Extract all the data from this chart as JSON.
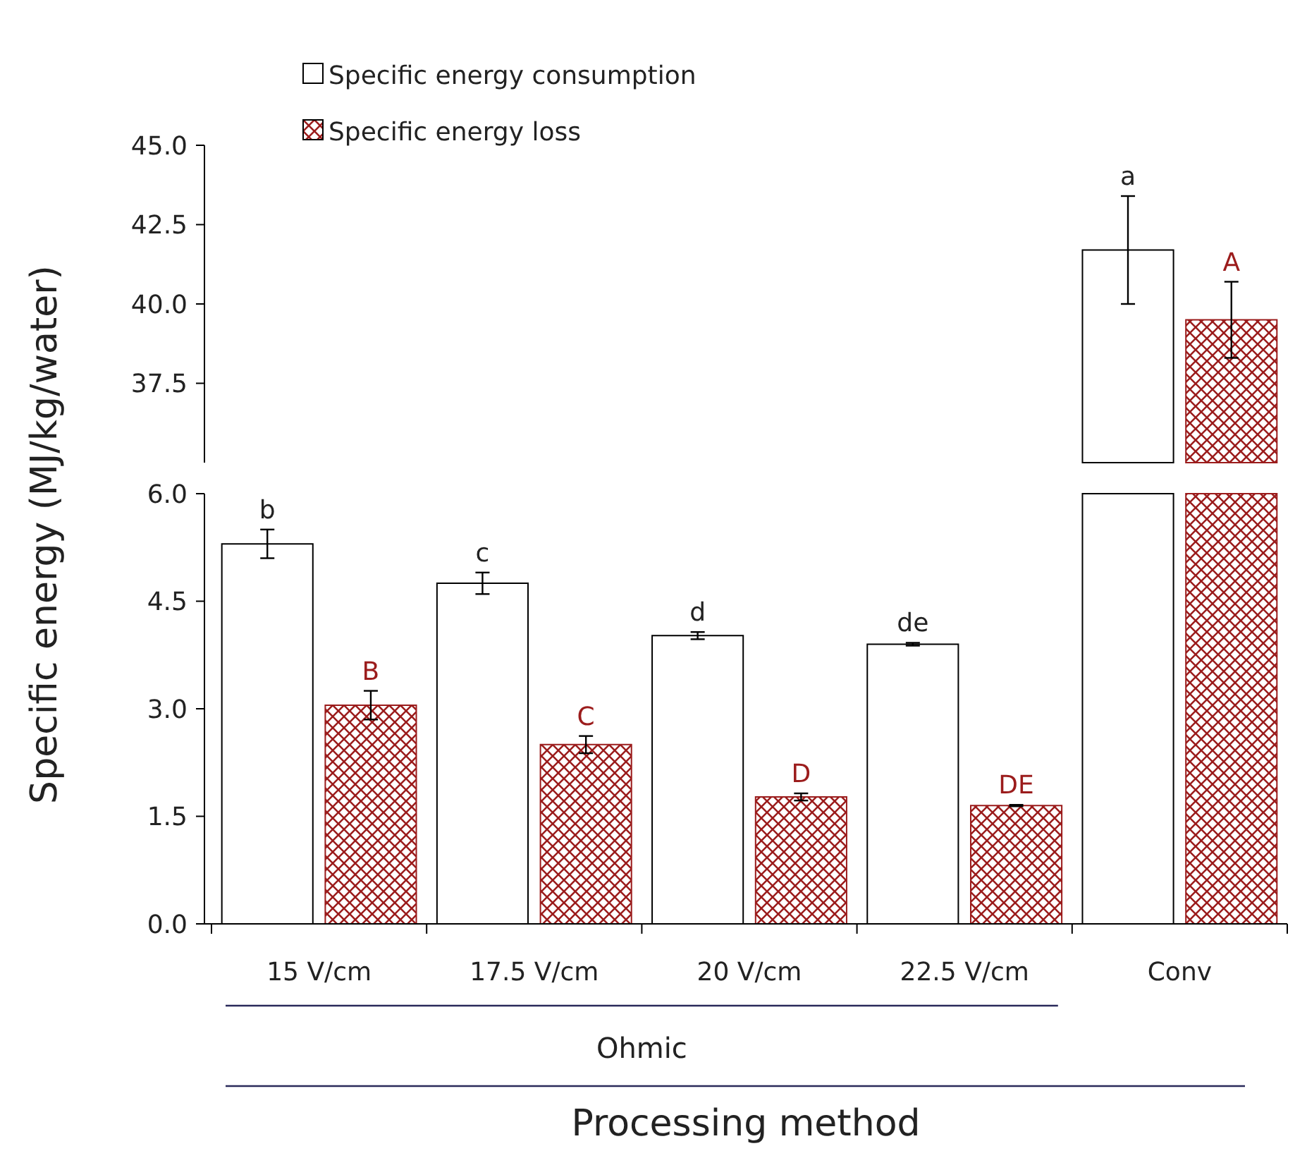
{
  "chart_data": [
    {
      "type": "bar",
      "categories": [
        "15 V/cm",
        "17.5 V/cm",
        "20 V/cm",
        "22.5 V/cm",
        "Conv"
      ],
      "series": [
        {
          "name": "Specific energy consumption",
          "color": "#ffffff",
          "values": [
            null,
            null,
            null,
            null,
            41.7
          ],
          "errors": [
            null,
            null,
            null,
            null,
            1.7
          ],
          "value_labels": [
            null,
            null,
            null,
            null,
            "a"
          ]
        },
        {
          "name": "Specific energy loss",
          "color": "#9b1c1c",
          "values": [
            null,
            null,
            null,
            null,
            39.5
          ],
          "errors": [
            null,
            null,
            null,
            null,
            1.2
          ],
          "value_labels": [
            null,
            null,
            null,
            null,
            "A"
          ]
        }
      ],
      "ylim": [
        35,
        45
      ],
      "yticks": [
        37.5,
        {
          "value": 40,
          "label": "40.0"
        },
        42.5,
        {
          "value": 45,
          "label": "45.0"
        }
      ],
      "tick_labels": "y",
      "legend": "top left"
    },
    {
      "type": "bar",
      "xlabel": "Processing method",
      "ylabel": "Specific energy (MJ/kg/water)",
      "categories": [
        "15 V/cm",
        "17.5 V/cm",
        "20 V/cm",
        "22.5 V/cm",
        "Conv"
      ],
      "series": [
        {
          "color": "#ffffff",
          "values": [
            5.3,
            4.75,
            4.02,
            3.9,
            null
          ],
          "errors": [
            0.2,
            0.15,
            0.05,
            0.02,
            null
          ],
          "value_labels": [
            "b",
            "c",
            "d",
            "de",
            null
          ]
        },
        {
          "color": "#9b1c1c",
          "values": [
            3.05,
            2.5,
            1.77,
            1.65,
            null
          ],
          "errors": [
            0.2,
            0.12,
            0.05,
            0.01,
            null
          ],
          "value_labels": [
            "B",
            "C",
            "D",
            "DE",
            null
          ]
        }
      ],
      "ylim": [
        0,
        6
      ],
      "yticks": [
        {
          "value": 0,
          "label": "0.0"
        },
        1.5,
        {
          "value": 3,
          "label": "3.0"
        },
        4.5,
        {
          "value": 6,
          "label": "6.0"
        }
      ],
      "annotations": [
        "Ohmic"
      ]
    }
  ]
}
